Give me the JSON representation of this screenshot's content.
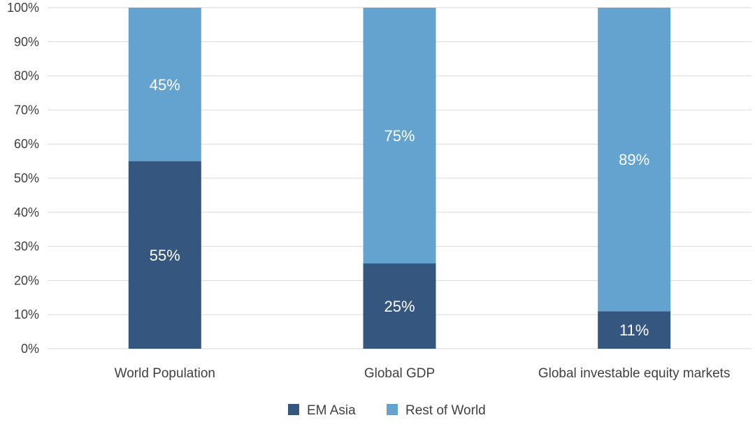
{
  "chart_data": {
    "type": "bar",
    "stacked": true,
    "categories": [
      "World Population",
      "Global GDP",
      "Global investable equity markets"
    ],
    "series": [
      {
        "name": "EM Asia",
        "values": [
          55,
          25,
          11
        ],
        "color": "#34567f",
        "labels": [
          "55%",
          "25%",
          "11%"
        ]
      },
      {
        "name": "Rest of World",
        "values": [
          45,
          75,
          89
        ],
        "color": "#64a3d0",
        "labels": [
          "45%",
          "75%",
          "89%"
        ]
      }
    ],
    "ylim": [
      0,
      100
    ],
    "yticks": [
      0,
      10,
      20,
      30,
      40,
      50,
      60,
      70,
      80,
      90,
      100
    ],
    "ytick_labels": [
      "0%",
      "10%",
      "20%",
      "30%",
      "40%",
      "50%",
      "60%",
      "70%",
      "80%",
      "90%",
      "100%"
    ],
    "grid": true,
    "legend": "bottom-center",
    "title": "",
    "xlabel": "",
    "ylabel": ""
  }
}
